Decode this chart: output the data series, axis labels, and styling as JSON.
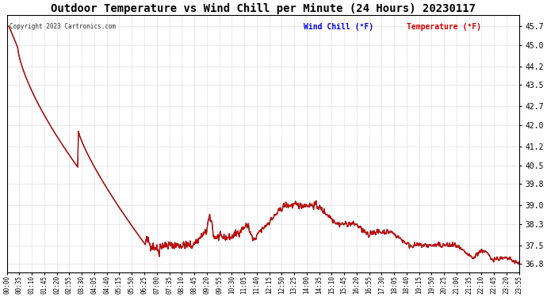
{
  "title": "Outdoor Temperature vs Wind Chill per Minute (24 Hours) 20230117",
  "copyright_text": "Copyright 2023 Cartronics.com",
  "legend_wind_chill": "Wind Chill (°F)",
  "legend_temperature": "Temperature (°F)",
  "wind_chill_color": "#0000cc",
  "temperature_color": "#cc0000",
  "background_color": "#ffffff",
  "grid_color": "#cccccc",
  "ylim": [
    36.5,
    46.1
  ],
  "yticks": [
    36.8,
    37.5,
    38.3,
    39.0,
    39.8,
    40.5,
    41.2,
    42.0,
    42.7,
    43.5,
    44.2,
    45.0,
    45.7
  ],
  "title_fontsize": 10,
  "title_color": "#000000",
  "copyright_fontsize": 6,
  "x_tick_labels": [
    "00:00",
    "00:35",
    "01:10",
    "01:45",
    "02:20",
    "02:55",
    "03:30",
    "04:05",
    "04:40",
    "05:15",
    "05:50",
    "06:25",
    "07:00",
    "07:35",
    "08:10",
    "08:45",
    "09:20",
    "09:55",
    "10:30",
    "11:05",
    "11:40",
    "12:15",
    "12:50",
    "13:25",
    "14:00",
    "14:35",
    "15:10",
    "15:45",
    "16:20",
    "16:55",
    "17:30",
    "18:05",
    "18:40",
    "19:15",
    "19:50",
    "20:25",
    "21:00",
    "21:35",
    "22:10",
    "22:45",
    "23:20",
    "23:55"
  ]
}
